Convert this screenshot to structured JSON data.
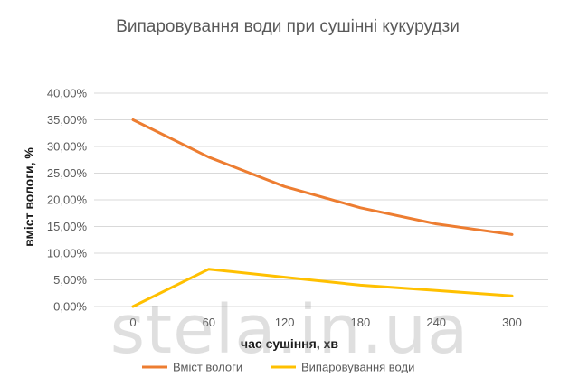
{
  "chart_data": {
    "type": "line",
    "title": "Випаровування води при сушінні кукурудзи",
    "xlabel": "час сушіння, хв",
    "ylabel": "вміст вологи, %",
    "x": [
      0,
      60,
      120,
      180,
      240,
      300
    ],
    "x_tick_labels": [
      "0",
      "60",
      "120",
      "180",
      "240",
      "300"
    ],
    "ylim": [
      0,
      40
    ],
    "y_ticks": [
      0,
      5,
      10,
      15,
      20,
      25,
      30,
      35,
      40
    ],
    "y_tick_labels": [
      "0,00%",
      "5,00%",
      "10,00%",
      "15,00%",
      "20,00%",
      "25,00%",
      "30,00%",
      "35,00%",
      "40,00%"
    ],
    "grid": "horizontal",
    "legend_position": "bottom",
    "series": [
      {
        "name": "Вміст вологи",
        "color": "#ED7D31",
        "values": [
          35.0,
          28.0,
          22.5,
          18.5,
          15.5,
          13.5
        ]
      },
      {
        "name": "Випаровування води",
        "color": "#FFC000",
        "values": [
          0.0,
          7.0,
          5.5,
          4.0,
          3.0,
          2.0
        ]
      }
    ]
  },
  "watermark": "stela.in.ua"
}
